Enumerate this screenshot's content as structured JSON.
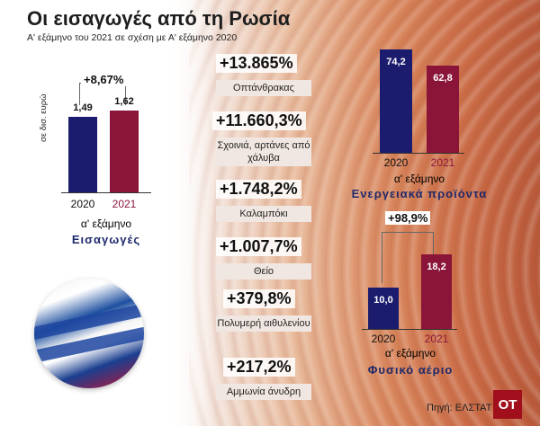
{
  "header": {
    "title": "Οι εισαγωγές από τη Ρωσία",
    "subtitle": "Α' εξάμηνο του 2021 σε σχέση με Α' εξάμηνο 2020"
  },
  "colors": {
    "y2020": "#1c1c6e",
    "y2021": "#8a1538",
    "accent_title": "#1f2a6b",
    "logo": "#a10f1c"
  },
  "chart_data": [
    {
      "type": "bar",
      "categories": [
        "2020",
        "2021"
      ],
      "values": [
        1.49,
        1.62
      ],
      "value_labels": [
        "1,49",
        "1,62"
      ],
      "ylabel": "σε δισ. ευρώ",
      "period": "α' εξάμηνο",
      "label": "Εισαγωγές",
      "change": "+8,67%"
    },
    {
      "type": "bar",
      "categories": [
        "2020",
        "2021"
      ],
      "values": [
        74.2,
        62.8
      ],
      "value_labels": [
        "74,2",
        "62,8"
      ],
      "period": "α' εξάμηνο",
      "label": "Ενεργειακά προϊόντα"
    },
    {
      "type": "bar",
      "categories": [
        "2020",
        "2021"
      ],
      "values": [
        10.0,
        18.2
      ],
      "value_labels": [
        "10,0",
        "18,2"
      ],
      "period": "α' εξάμηνο",
      "label": "Φυσικό αέριο",
      "change": "+98,9%"
    },
    {
      "type": "table",
      "items": [
        {
          "value": "+13.865%",
          "label": "Οπτάνθρακας"
        },
        {
          "value": "+11.660,3%",
          "label": "Σχοινιά, αρτάνες από χάλυβα"
        },
        {
          "value": "+1.748,2%",
          "label": "Καλαμπόκι"
        },
        {
          "value": "+1.007,7%",
          "label": "Θείο"
        },
        {
          "value": "+379,8%",
          "label": "Πολυμερή αιθυλενίου"
        },
        {
          "value": "+217,2%",
          "label": "Αμμωνία άνυδρη"
        }
      ]
    }
  ],
  "footer": {
    "source": "Πηγή: ΕΛΣΤΑΤ",
    "logo": "OT"
  }
}
